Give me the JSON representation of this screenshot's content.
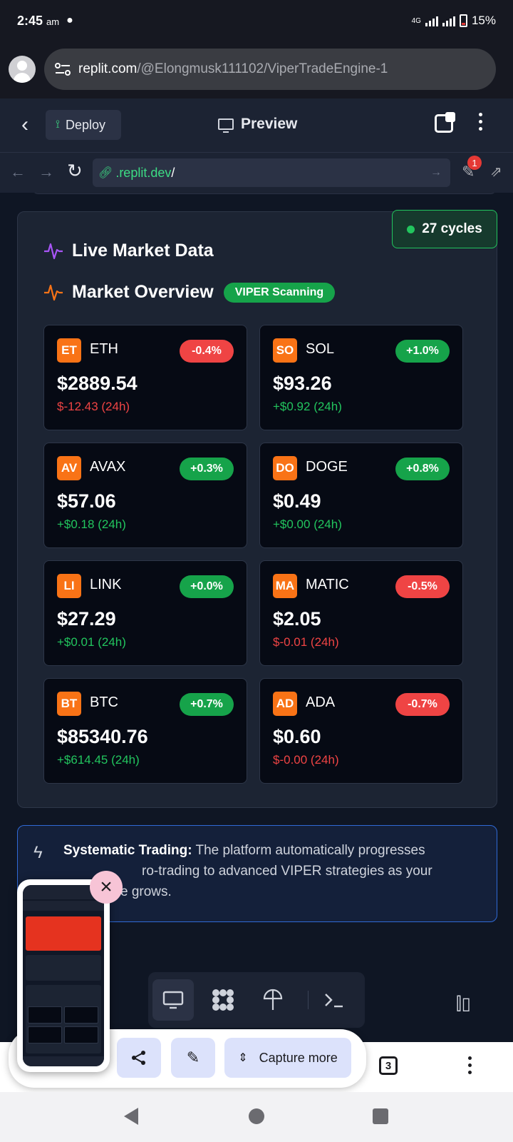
{
  "status_bar": {
    "time": "2:45",
    "ampm": "am",
    "battery": "15%",
    "network": "4G"
  },
  "browser": {
    "url_host": "replit.com",
    "url_path": "/@Elongmusk111102/ViperTradeEngine-1"
  },
  "replit": {
    "deploy_label": "Deploy",
    "preview_label": "Preview",
    "address_domain": ".replit.dev",
    "address_slash": "/",
    "devtools_badge": "1"
  },
  "live_market": {
    "cycles_label": "27 cycles",
    "title": "Live Market Data",
    "overview_title": "Market Overview",
    "scanning_badge": "VIPER Scanning",
    "coins": [
      {
        "logo": "ET",
        "symbol": "ETH",
        "change_pct": "-0.4%",
        "price": "$2889.54",
        "change_24h": "$-12.43 (24h)",
        "direction": "neg"
      },
      {
        "logo": "SO",
        "symbol": "SOL",
        "change_pct": "+1.0%",
        "price": "$93.26",
        "change_24h": "+$0.92 (24h)",
        "direction": "pos"
      },
      {
        "logo": "AV",
        "symbol": "AVAX",
        "change_pct": "+0.3%",
        "price": "$57.06",
        "change_24h": "+$0.18 (24h)",
        "direction": "pos"
      },
      {
        "logo": "DO",
        "symbol": "DOGE",
        "change_pct": "+0.8%",
        "price": "$0.49",
        "change_24h": "+$0.00 (24h)",
        "direction": "pos"
      },
      {
        "logo": "LI",
        "symbol": "LINK",
        "change_pct": "+0.0%",
        "price": "$27.29",
        "change_24h": "+$0.01 (24h)",
        "direction": "pos"
      },
      {
        "logo": "MA",
        "symbol": "MATIC",
        "change_pct": "-0.5%",
        "price": "$2.05",
        "change_24h": "$-0.01 (24h)",
        "direction": "neg"
      },
      {
        "logo": "BT",
        "symbol": "BTC",
        "change_pct": "+0.7%",
        "price": "$85340.76",
        "change_24h": "+$614.45 (24h)",
        "direction": "pos"
      },
      {
        "logo": "AD",
        "symbol": "ADA",
        "change_pct": "-0.7%",
        "price": "$0.60",
        "change_24h": "$-0.00 (24h)",
        "direction": "neg"
      }
    ]
  },
  "info_banner": {
    "bold": "Systematic Trading:",
    "line1": " The platform automatically progresses",
    "line2": "ro-trading to advanced VIPER strategies as your",
    "line3": "e grows."
  },
  "capture": {
    "more_label": "Capture more",
    "tab_count": "3"
  },
  "icons": {
    "workspace_toolbar": [
      "monitor-icon",
      "apps-icon",
      "deploy-icon",
      "shell-icon"
    ],
    "capture_toolbar": [
      "share-icon",
      "edit-icon"
    ]
  },
  "colors": {
    "positive": "#22c55e",
    "negative": "#ef4444",
    "coin_logo": "#f97316",
    "info_border": "#2f6ad6"
  }
}
